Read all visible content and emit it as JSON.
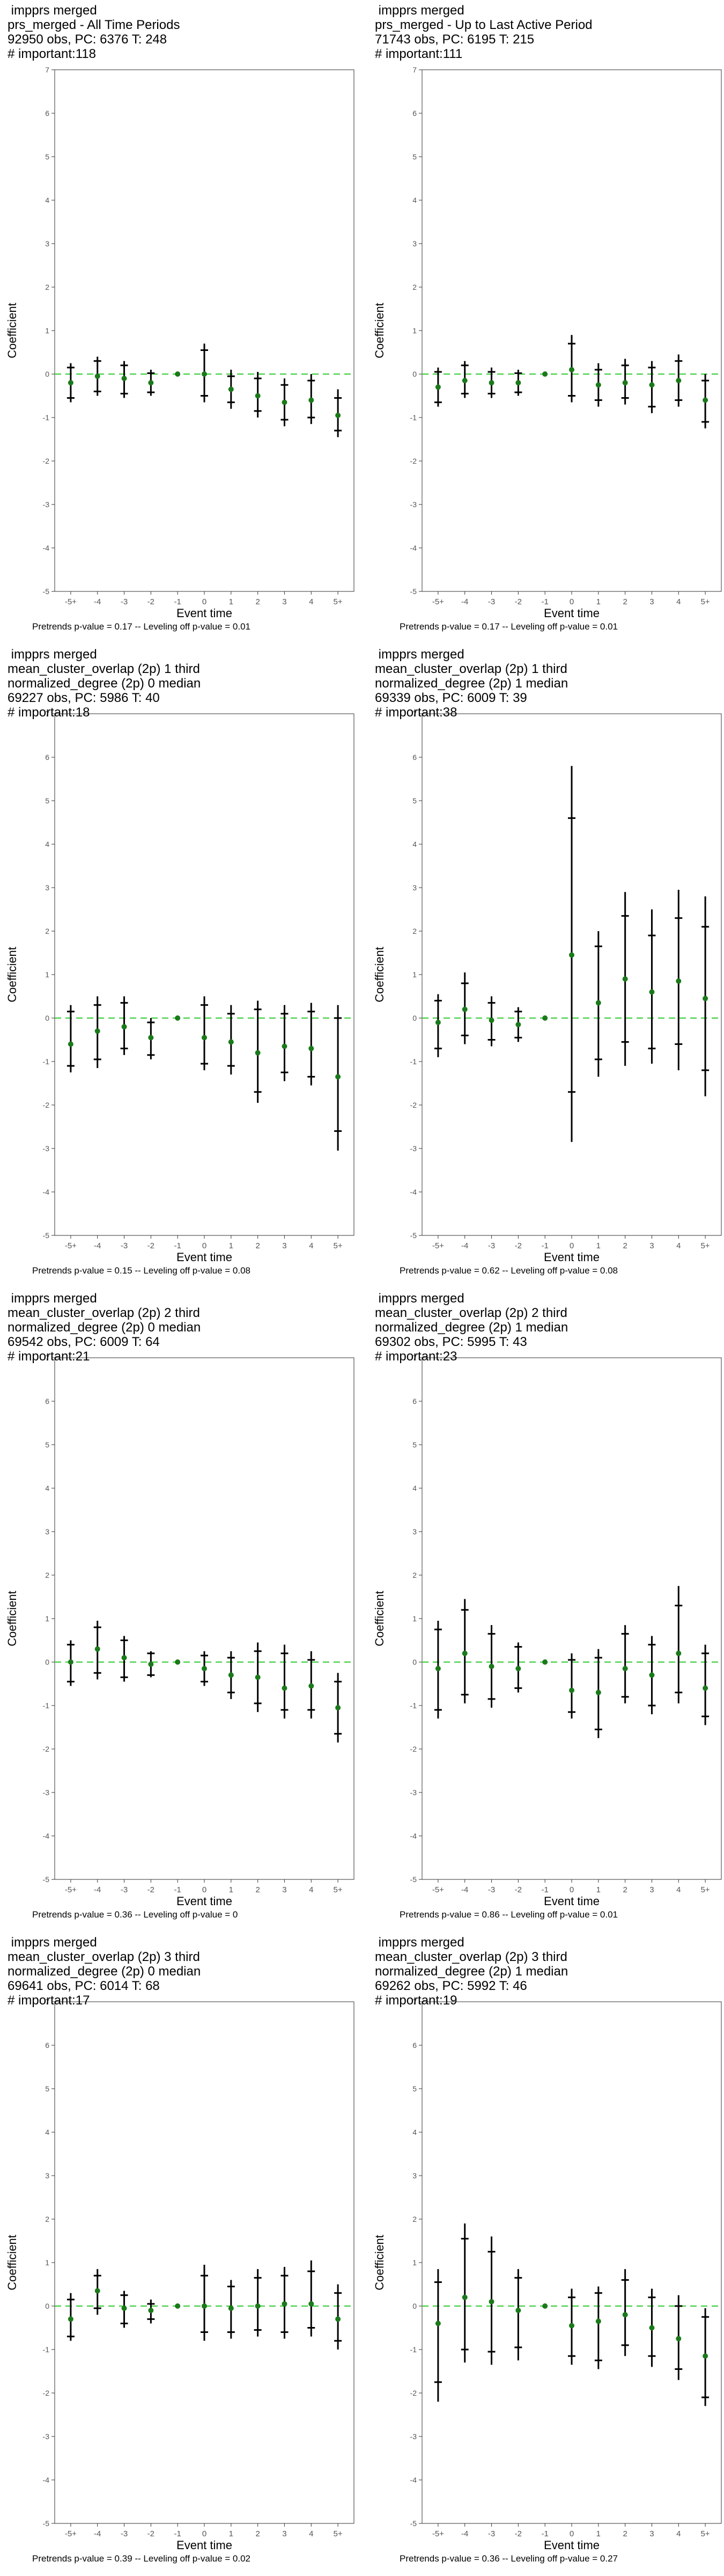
{
  "shared": {
    "xlabel": "Event time",
    "ylabel": "Coefficient",
    "x_categories": [
      "-5+",
      "-4",
      "-3",
      "-2",
      "-1",
      "0",
      "1",
      "2",
      "3",
      "4",
      "5+"
    ],
    "y_ticks": [
      -5,
      -4,
      -3,
      -2,
      -1,
      0,
      1,
      2,
      3,
      4,
      5,
      6,
      7
    ],
    "ylim": [
      -5,
      7
    ],
    "reference_line": {
      "y": 0,
      "style": "dashed",
      "color": "#33cc33"
    },
    "point_color": "#1a7a1a",
    "bar_color": "#000000"
  },
  "chart_data": [
    {
      "type": "scatter",
      "title_lines": [
        " impprs merged",
        "prs_merged - All Time Periods",
        "92950 obs, PC: 6376 T: 248",
        "# important:118"
      ],
      "footer": "Pretrends p-value = 0.17 -- Leveling off p-value = 0.01",
      "x": [
        "-5+",
        "-4",
        "-3",
        "-2",
        "-1",
        "0",
        "1",
        "2",
        "3",
        "4",
        "5+"
      ],
      "y": [
        -0.2,
        -0.05,
        -0.1,
        -0.2,
        0,
        0.0,
        -0.35,
        -0.5,
        -0.65,
        -0.6,
        -0.95
      ],
      "ci95": [
        [
          -0.65,
          0.25
        ],
        [
          -0.5,
          0.4
        ],
        [
          -0.55,
          0.3
        ],
        [
          -0.5,
          0.1
        ],
        [
          0,
          0
        ],
        [
          -0.65,
          0.7
        ],
        [
          -0.8,
          0.1
        ],
        [
          -1.0,
          0.05
        ],
        [
          -1.2,
          -0.1
        ],
        [
          -1.15,
          0.0
        ],
        [
          -1.45,
          -0.35
        ]
      ],
      "ci90": [
        [
          -0.55,
          0.15
        ],
        [
          -0.4,
          0.3
        ],
        [
          -0.45,
          0.2
        ],
        [
          -0.42,
          0.02
        ],
        [
          0,
          0
        ],
        [
          -0.5,
          0.55
        ],
        [
          -0.65,
          -0.05
        ],
        [
          -0.85,
          -0.1
        ],
        [
          -1.05,
          -0.25
        ],
        [
          -1.0,
          -0.15
        ],
        [
          -1.3,
          -0.55
        ]
      ]
    },
    {
      "type": "scatter",
      "title_lines": [
        " impprs merged",
        "prs_merged - Up to Last Active Period",
        "71743 obs, PC: 6195 T: 215",
        "# important:111"
      ],
      "footer": "Pretrends p-value = 0.17 -- Leveling off p-value = 0.01",
      "x": [
        "-5+",
        "-4",
        "-3",
        "-2",
        "-1",
        "0",
        "1",
        "2",
        "3",
        "4",
        "5+"
      ],
      "y": [
        -0.3,
        -0.15,
        -0.2,
        -0.2,
        0,
        0.1,
        -0.25,
        -0.2,
        -0.25,
        -0.15,
        -0.6
      ],
      "ci95": [
        [
          -0.75,
          0.15
        ],
        [
          -0.55,
          0.3
        ],
        [
          -0.55,
          0.15
        ],
        [
          -0.5,
          0.1
        ],
        [
          0,
          0
        ],
        [
          -0.65,
          0.9
        ],
        [
          -0.75,
          0.25
        ],
        [
          -0.7,
          0.35
        ],
        [
          -0.9,
          0.3
        ],
        [
          -0.75,
          0.45
        ],
        [
          -1.25,
          0.0
        ]
      ],
      "ci90": [
        [
          -0.65,
          0.05
        ],
        [
          -0.45,
          0.2
        ],
        [
          -0.45,
          0.05
        ],
        [
          -0.42,
          0.02
        ],
        [
          0,
          0
        ],
        [
          -0.5,
          0.7
        ],
        [
          -0.6,
          0.1
        ],
        [
          -0.55,
          0.2
        ],
        [
          -0.75,
          0.15
        ],
        [
          -0.6,
          0.3
        ],
        [
          -1.1,
          -0.15
        ]
      ]
    },
    {
      "type": "scatter",
      "title_lines": [
        " impprs merged",
        "mean_cluster_overlap (2p) 1 third",
        "normalized_degree (2p) 0 median",
        "69227 obs, PC: 5986 T: 40",
        "# important:18"
      ],
      "footer": "Pretrends p-value = 0.15 -- Leveling off p-value = 0.08",
      "x": [
        "-5+",
        "-4",
        "-3",
        "-2",
        "-1",
        "0",
        "1",
        "2",
        "3",
        "4",
        "5+"
      ],
      "y": [
        -0.6,
        -0.3,
        -0.2,
        -0.45,
        0,
        -0.45,
        -0.55,
        -0.8,
        -0.65,
        -0.7,
        -1.35
      ],
      "ci95": [
        [
          -1.25,
          0.3
        ],
        [
          -1.15,
          0.5
        ],
        [
          -0.85,
          0.5
        ],
        [
          -0.95,
          0.0
        ],
        [
          0,
          0
        ],
        [
          -1.2,
          0.5
        ],
        [
          -1.3,
          0.3
        ],
        [
          -1.95,
          0.4
        ],
        [
          -1.45,
          0.3
        ],
        [
          -1.55,
          0.35
        ],
        [
          -3.05,
          0.3
        ]
      ],
      "ci90": [
        [
          -1.1,
          0.15
        ],
        [
          -0.95,
          0.3
        ],
        [
          -0.7,
          0.35
        ],
        [
          -0.85,
          -0.1
        ],
        [
          0,
          0
        ],
        [
          -1.05,
          0.3
        ],
        [
          -1.1,
          0.1
        ],
        [
          -1.7,
          0.2
        ],
        [
          -1.25,
          0.1
        ],
        [
          -1.35,
          0.15
        ],
        [
          -2.6,
          0.0
        ]
      ]
    },
    {
      "type": "scatter",
      "title_lines": [
        " impprs merged",
        "mean_cluster_overlap (2p) 1 third",
        "normalized_degree (2p) 1 median",
        "69339 obs, PC: 6009 T: 39",
        "# important:38"
      ],
      "footer": "Pretrends p-value = 0.62 -- Leveling off p-value = 0.08",
      "x": [
        "-5+",
        "-4",
        "-3",
        "-2",
        "-1",
        "0",
        "1",
        "2",
        "3",
        "4",
        "5+"
      ],
      "y": [
        -0.1,
        0.2,
        -0.05,
        -0.15,
        0,
        1.45,
        0.35,
        0.9,
        0.6,
        0.85,
        0.45
      ],
      "ci95": [
        [
          -0.9,
          0.55
        ],
        [
          -0.6,
          1.05
        ],
        [
          -0.65,
          0.5
        ],
        [
          -0.55,
          0.25
        ],
        [
          0,
          0
        ],
        [
          -2.85,
          5.8
        ],
        [
          -1.35,
          2.0
        ],
        [
          -1.1,
          2.9
        ],
        [
          -1.05,
          2.5
        ],
        [
          -1.2,
          2.95
        ],
        [
          -1.8,
          2.8
        ]
      ],
      "ci90": [
        [
          -0.7,
          0.4
        ],
        [
          -0.4,
          0.8
        ],
        [
          -0.5,
          0.35
        ],
        [
          -0.45,
          0.15
        ],
        [
          0,
          0
        ],
        [
          -1.7,
          4.6
        ],
        [
          -0.95,
          1.65
        ],
        [
          -0.55,
          2.35
        ],
        [
          -0.7,
          1.9
        ],
        [
          -0.6,
          2.3
        ],
        [
          -1.2,
          2.1
        ]
      ]
    },
    {
      "type": "scatter",
      "title_lines": [
        " impprs merged",
        "mean_cluster_overlap (2p) 2 third",
        "normalized_degree (2p) 0 median",
        "69542 obs, PC: 6009 T: 64",
        "# important:21"
      ],
      "footer": "Pretrends p-value = 0.36 -- Leveling off p-value = 0",
      "x": [
        "-5+",
        "-4",
        "-3",
        "-2",
        "-1",
        "0",
        "1",
        "2",
        "3",
        "4",
        "5+"
      ],
      "y": [
        0.0,
        0.3,
        0.1,
        -0.05,
        0,
        -0.15,
        -0.3,
        -0.35,
        -0.6,
        -0.55,
        -1.05
      ],
      "ci95": [
        [
          -0.55,
          0.5
        ],
        [
          -0.4,
          0.95
        ],
        [
          -0.45,
          0.6
        ],
        [
          -0.35,
          0.25
        ],
        [
          0,
          0
        ],
        [
          -0.55,
          0.25
        ],
        [
          -0.85,
          0.25
        ],
        [
          -1.15,
          0.45
        ],
        [
          -1.3,
          0.4
        ],
        [
          -1.3,
          0.25
        ],
        [
          -1.85,
          -0.25
        ]
      ],
      "ci90": [
        [
          -0.45,
          0.4
        ],
        [
          -0.25,
          0.8
        ],
        [
          -0.35,
          0.5
        ],
        [
          -0.3,
          0.2
        ],
        [
          0,
          0
        ],
        [
          -0.45,
          0.15
        ],
        [
          -0.7,
          0.1
        ],
        [
          -0.95,
          0.25
        ],
        [
          -1.1,
          0.2
        ],
        [
          -1.1,
          0.05
        ],
        [
          -1.65,
          -0.45
        ]
      ]
    },
    {
      "type": "scatter",
      "title_lines": [
        " impprs merged",
        "mean_cluster_overlap (2p) 2 third",
        "normalized_degree (2p) 1 median",
        "69302 obs, PC: 5995 T: 43",
        "# important:23"
      ],
      "footer": "Pretrends p-value = 0.86 -- Leveling off p-value = 0.01",
      "x": [
        "-5+",
        "-4",
        "-3",
        "-2",
        "-1",
        "0",
        "1",
        "2",
        "3",
        "4",
        "5+"
      ],
      "y": [
        -0.15,
        0.2,
        -0.1,
        -0.15,
        0,
        -0.65,
        -0.7,
        -0.15,
        -0.3,
        0.2,
        -0.6
      ],
      "ci95": [
        [
          -1.3,
          0.95
        ],
        [
          -0.95,
          1.45
        ],
        [
          -1.05,
          0.85
        ],
        [
          -0.7,
          0.45
        ],
        [
          0,
          0
        ],
        [
          -1.3,
          0.2
        ],
        [
          -1.75,
          0.3
        ],
        [
          -0.95,
          0.85
        ],
        [
          -1.2,
          0.6
        ],
        [
          -0.95,
          1.75
        ],
        [
          -1.45,
          0.4
        ]
      ],
      "ci90": [
        [
          -1.1,
          0.75
        ],
        [
          -0.75,
          1.2
        ],
        [
          -0.85,
          0.65
        ],
        [
          -0.6,
          0.35
        ],
        [
          0,
          0
        ],
        [
          -1.15,
          0.05
        ],
        [
          -1.55,
          0.1
        ],
        [
          -0.8,
          0.65
        ],
        [
          -1.0,
          0.4
        ],
        [
          -0.7,
          1.3
        ],
        [
          -1.25,
          0.2
        ]
      ]
    },
    {
      "type": "scatter",
      "title_lines": [
        " impprs merged",
        "mean_cluster_overlap (2p) 3 third",
        "normalized_degree (2p) 0 median",
        "69641 obs, PC: 6014 T: 68",
        "# important:17"
      ],
      "footer": "Pretrends p-value = 0.39 -- Leveling off p-value = 0.02",
      "x": [
        "-5+",
        "-4",
        "-3",
        "-2",
        "-1",
        "0",
        "1",
        "2",
        "3",
        "4",
        "5+"
      ],
      "y": [
        -0.3,
        0.35,
        -0.05,
        -0.1,
        0,
        0.0,
        -0.05,
        0.0,
        0.05,
        0.05,
        -0.3
      ],
      "ci95": [
        [
          -0.8,
          0.3
        ],
        [
          -0.2,
          0.85
        ],
        [
          -0.5,
          0.35
        ],
        [
          -0.4,
          0.15
        ],
        [
          0,
          0
        ],
        [
          -0.8,
          0.95
        ],
        [
          -0.75,
          0.6
        ],
        [
          -0.7,
          0.85
        ],
        [
          -0.75,
          0.9
        ],
        [
          -0.7,
          1.05
        ],
        [
          -1.0,
          0.5
        ]
      ],
      "ci90": [
        [
          -0.7,
          0.15
        ],
        [
          -0.05,
          0.7
        ],
        [
          -0.4,
          0.25
        ],
        [
          -0.3,
          0.05
        ],
        [
          0,
          0
        ],
        [
          -0.6,
          0.7
        ],
        [
          -0.6,
          0.45
        ],
        [
          -0.55,
          0.65
        ],
        [
          -0.6,
          0.7
        ],
        [
          -0.5,
          0.8
        ],
        [
          -0.8,
          0.3
        ]
      ]
    },
    {
      "type": "scatter",
      "title_lines": [
        " impprs merged",
        "mean_cluster_overlap (2p) 3 third",
        "normalized_degree (2p) 1 median",
        "69262 obs, PC: 5992 T: 46",
        "# important:19"
      ],
      "footer": "Pretrends p-value = 0.36 -- Leveling off p-value = 0.27",
      "x": [
        "-5+",
        "-4",
        "-3",
        "-2",
        "-1",
        "0",
        "1",
        "2",
        "3",
        "4",
        "5+"
      ],
      "y": [
        -0.4,
        0.2,
        0.1,
        -0.1,
        0,
        -0.45,
        -0.35,
        -0.2,
        -0.5,
        -0.75,
        -1.15
      ],
      "ci95": [
        [
          -2.2,
          0.85
        ],
        [
          -1.3,
          1.9
        ],
        [
          -1.35,
          1.6
        ],
        [
          -1.25,
          0.85
        ],
        [
          0,
          0
        ],
        [
          -1.35,
          0.4
        ],
        [
          -1.45,
          0.45
        ],
        [
          -1.15,
          0.85
        ],
        [
          -1.4,
          0.4
        ],
        [
          -1.7,
          0.25
        ],
        [
          -2.3,
          -0.05
        ]
      ],
      "ci90": [
        [
          -1.75,
          0.55
        ],
        [
          -1.0,
          1.55
        ],
        [
          -1.05,
          1.25
        ],
        [
          -0.95,
          0.65
        ],
        [
          0,
          0
        ],
        [
          -1.15,
          0.2
        ],
        [
          -1.25,
          0.3
        ],
        [
          -0.9,
          0.6
        ],
        [
          -1.15,
          0.2
        ],
        [
          -1.45,
          0.0
        ],
        [
          -2.1,
          -0.25
        ]
      ]
    }
  ]
}
